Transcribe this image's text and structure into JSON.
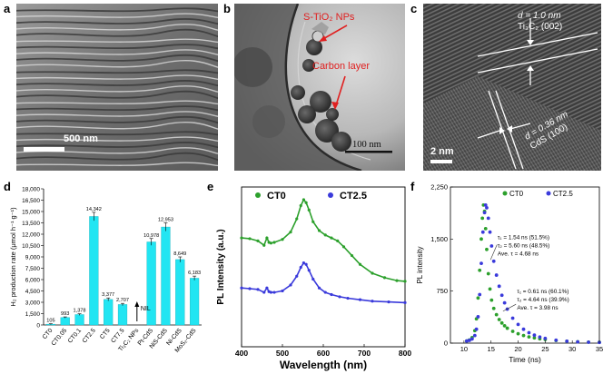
{
  "panels": {
    "a": {
      "letter": "a",
      "scale_bar": "500 nm"
    },
    "b": {
      "letter": "b",
      "annotation_np": "S-TiO₂ NPs",
      "annotation_carbon": "Carbon layer",
      "scale_bar": "100 nm"
    },
    "c": {
      "letter": "c",
      "d1_value": "d = 1.0 nm",
      "d1_plane": "Ti₃C₂ (002)",
      "d2_value": "d = 0.36 nm",
      "d2_plane": "CdS (100)",
      "scale_bar": "2 nm"
    },
    "d": {
      "letter": "d"
    },
    "e": {
      "letter": "e"
    },
    "f": {
      "letter": "f"
    }
  },
  "chart_data": [
    {
      "panel": "d",
      "type": "bar",
      "categories": [
        "CT0",
        "CT0.05",
        "CT0.1",
        "CT2.5",
        "CT5",
        "CT7.5",
        "Ti₃C₂ NPs",
        "Pt-CdS",
        "NiS-CdS",
        "Ni-CdS",
        "MoS₂-CdS"
      ],
      "values": [
        105,
        993,
        1378,
        14342,
        3377,
        2707,
        0,
        10978,
        12953,
        8649,
        6183
      ],
      "data_labels": [
        "105",
        "993",
        "1,378",
        "14,342",
        "3,377",
        "2,707",
        "NIL",
        "10,978",
        "12,953",
        "8,649",
        "6,183"
      ],
      "errors": [
        60,
        80,
        100,
        550,
        200,
        150,
        0,
        450,
        550,
        350,
        280
      ],
      "ylabel": "H₂ production rate (μmol h⁻¹ g⁻¹)",
      "ylim": [
        0,
        18000
      ],
      "yticks": [
        "0",
        "1,500",
        "3,000",
        "4,500",
        "6,000",
        "7,500",
        "9,000",
        "10,500",
        "12,000",
        "13,500",
        "15,000",
        "16,500",
        "18,000"
      ],
      "bar_color": "#22e5f2",
      "grid": false
    },
    {
      "panel": "e",
      "type": "scatter",
      "xlabel": "Wavelength (nm)",
      "ylabel": "PL Intensity (a.u.)",
      "xlim": [
        400,
        800
      ],
      "xticks": [
        "400",
        "500",
        "600",
        "700",
        "800"
      ],
      "legend_position": "top",
      "series": [
        {
          "name": "CT0",
          "color": "#2ca02c",
          "x": [
            400,
            420,
            440,
            455,
            462,
            467,
            472,
            480,
            500,
            520,
            535,
            545,
            552,
            558,
            565,
            575,
            590,
            605,
            620,
            635,
            650,
            670,
            690,
            720,
            750,
            780,
            800
          ],
          "y": [
            0.74,
            0.735,
            0.72,
            0.69,
            0.74,
            0.71,
            0.705,
            0.71,
            0.73,
            0.78,
            0.87,
            0.96,
            1.0,
            0.98,
            0.93,
            0.85,
            0.79,
            0.76,
            0.74,
            0.72,
            0.68,
            0.62,
            0.56,
            0.5,
            0.47,
            0.45,
            0.445
          ]
        },
        {
          "name": "CT2.5",
          "color": "#3a3adb",
          "x": [
            400,
            420,
            440,
            455,
            462,
            467,
            472,
            480,
            500,
            520,
            535,
            545,
            552,
            558,
            565,
            575,
            590,
            605,
            620,
            640,
            660,
            690,
            720,
            760,
            800
          ],
          "y": [
            0.4,
            0.395,
            0.39,
            0.37,
            0.4,
            0.375,
            0.37,
            0.37,
            0.38,
            0.42,
            0.48,
            0.54,
            0.57,
            0.56,
            0.52,
            0.46,
            0.4,
            0.37,
            0.355,
            0.34,
            0.33,
            0.32,
            0.31,
            0.305,
            0.3
          ]
        }
      ]
    },
    {
      "panel": "f",
      "type": "scatter",
      "xlabel": "Time (ns)",
      "ylabel": "PL intensity",
      "xlim": [
        7.5,
        35
      ],
      "ylim": [
        0,
        2250
      ],
      "xticks": [
        "10",
        "15",
        "20",
        "25",
        "30",
        "35"
      ],
      "yticks": [
        "0",
        "750",
        "1,500",
        "2,250"
      ],
      "legend_position": "top",
      "annotations": {
        "ct2_5": [
          "τ₁ = 1.54 ns (51.5%)",
          "τ₂ = 5.60 ns (48.5%)",
          "Ave. τ = 4.68 ns"
        ],
        "ct0": [
          "τ₁ = 0.61 ns (60.1%)",
          "τ₂ = 4.64 ns (39.9%)",
          "Ave. τ = 3.98 ns"
        ]
      },
      "series": [
        {
          "name": "CT0",
          "color": "#2ca02c",
          "x": [
            10.5,
            11,
            11.5,
            12,
            12.3,
            12.6,
            12.9,
            13.2,
            13.4,
            13.6,
            13.8,
            14.0,
            14.2,
            14.5,
            14.8,
            15.1,
            15.5,
            16,
            16.5,
            17,
            17.5,
            18,
            19,
            20,
            21,
            22,
            23,
            24,
            25,
            27,
            29,
            31,
            33,
            35
          ],
          "y": [
            30,
            45,
            80,
            180,
            350,
            650,
            1050,
            1500,
            1800,
            1990,
            1900,
            1650,
            1350,
            1000,
            780,
            620,
            500,
            410,
            340,
            290,
            250,
            215,
            170,
            135,
            110,
            90,
            75,
            62,
            52,
            38,
            28,
            20,
            15,
            12
          ]
        },
        {
          "name": "CT2.5",
          "color": "#3a3adb",
          "x": [
            10.5,
            11,
            11.5,
            12,
            12.3,
            12.6,
            12.9,
            13.2,
            13.5,
            13.8,
            14.0,
            14.2,
            14.5,
            14.8,
            15.1,
            15.5,
            16,
            16.5,
            17,
            17.5,
            18,
            19,
            20,
            21,
            22,
            23,
            24,
            25,
            27,
            29,
            31,
            33,
            35
          ],
          "y": [
            30,
            40,
            60,
            110,
            200,
            380,
            700,
            1150,
            1600,
            1880,
            1990,
            1950,
            1800,
            1600,
            1400,
            1180,
            980,
            820,
            690,
            580,
            490,
            360,
            270,
            200,
            150,
            115,
            88,
            68,
            42,
            27,
            18,
            13,
            10
          ]
        }
      ]
    }
  ]
}
